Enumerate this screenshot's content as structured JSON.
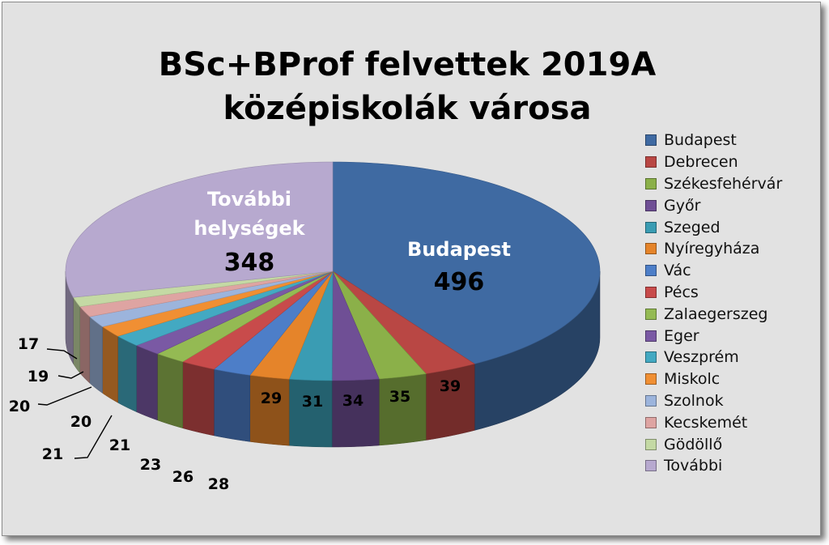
{
  "chart_data": {
    "type": "pie",
    "title": "BSc+BProf felvettek 2019A középiskolák városa",
    "series": [
      {
        "values": [
          496,
          39,
          35,
          34,
          31,
          29,
          28,
          26,
          23,
          21,
          21,
          20,
          20,
          19,
          17,
          348
        ]
      }
    ],
    "categories": [
      "Budapest",
      "Debrecen",
      "Székesfehérvár",
      "Győr",
      "Szeged",
      "Nyíregyháza",
      "Vác",
      "Pécs",
      "Zalaegerszeg",
      "Eger",
      "Veszprém",
      "Miskolc",
      "Szolnok",
      "Kecskemét",
      "Gödöllő",
      "További"
    ],
    "colors": [
      "#3f6aa2",
      "#b94744",
      "#8bb049",
      "#6f4f95",
      "#3a9cb3",
      "#e5842a",
      "#4d7ec8",
      "#c84b4b",
      "#94ba53",
      "#7a59a4",
      "#43a9c2",
      "#f08f33",
      "#9cb4dc",
      "#dea4a2",
      "#c4d9a4",
      "#b7a9cf"
    ],
    "labels": {
      "budapest_name": "Budapest",
      "budapest_value": "496",
      "tovabbi_line1": "További",
      "tovabbi_line2": "helységek",
      "tovabbi_value": "348"
    },
    "legend_position": "right"
  }
}
